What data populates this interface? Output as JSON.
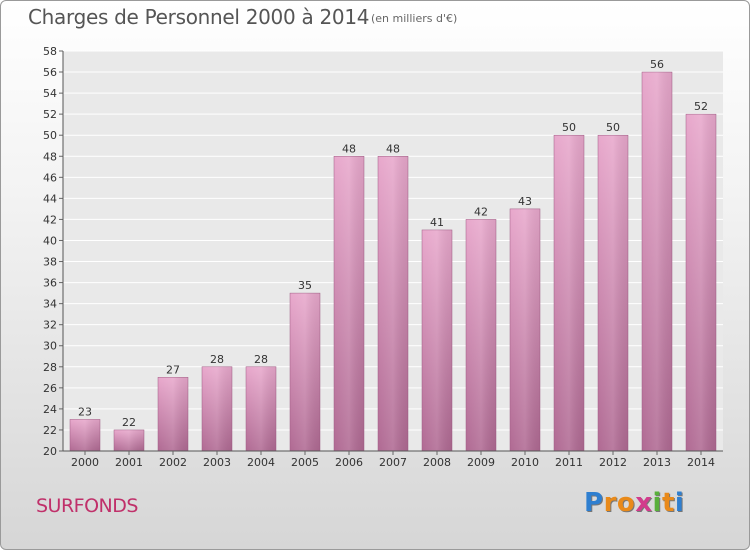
{
  "header": {
    "title": "Charges de Personnel 2000 à 2014",
    "unit": "(en milliers d'€)"
  },
  "footer": {
    "commune": "SURFONDS",
    "logo_letters": [
      "P",
      "r",
      "o",
      "x",
      "i",
      "t",
      "i"
    ],
    "logo_colors": [
      "#2f7fd0",
      "#e98a1a",
      "#e98a1a",
      "#d23c8c",
      "#59b03b",
      "#e98a1a",
      "#2f7fd0"
    ]
  },
  "chart_data": {
    "type": "bar",
    "title": "Charges de Personnel 2000 à 2014",
    "subtitle": "(en milliers d'€)",
    "categories": [
      "2000",
      "2001",
      "2002",
      "2003",
      "2004",
      "2005",
      "2006",
      "2007",
      "2008",
      "2009",
      "2010",
      "2011",
      "2012",
      "2013",
      "2014"
    ],
    "values": [
      23,
      22,
      27,
      28,
      28,
      35,
      48,
      48,
      41,
      42,
      43,
      50,
      50,
      56,
      52
    ],
    "ylim": [
      20,
      58
    ],
    "yticks": [
      20,
      22,
      24,
      26,
      28,
      30,
      32,
      34,
      36,
      38,
      40,
      42,
      44,
      46,
      48,
      50,
      52,
      54,
      56,
      58
    ],
    "grid": true,
    "bar_color": "#d98ab4"
  }
}
